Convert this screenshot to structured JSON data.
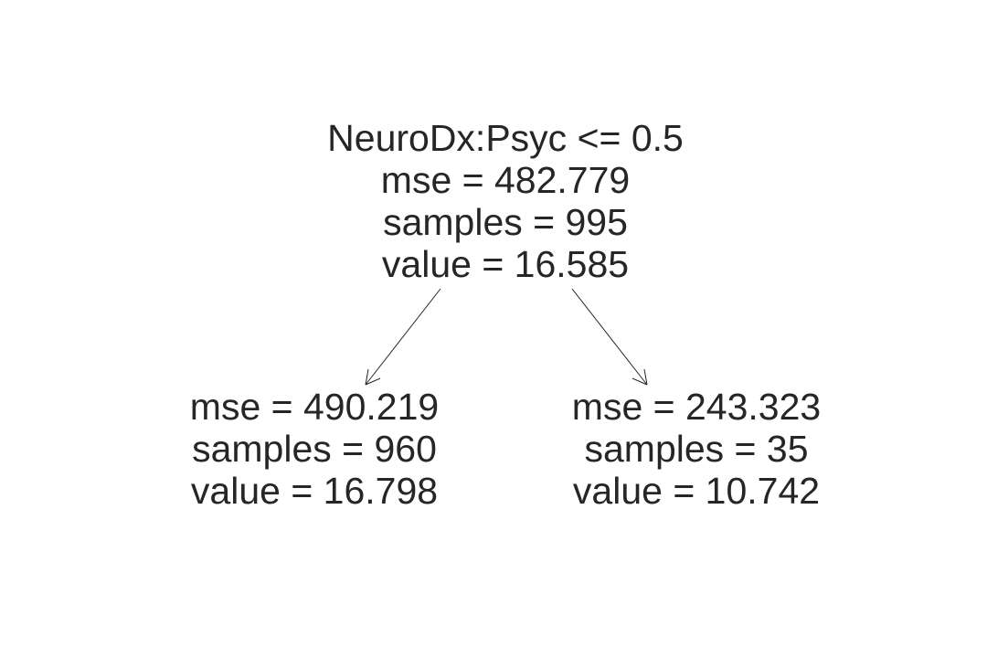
{
  "tree": {
    "root": {
      "condition": "NeuroDx:Psyc <= 0.5",
      "mse": "mse = 482.779",
      "samples": "samples = 995",
      "value": "value = 16.585"
    },
    "left": {
      "mse": "mse = 490.219",
      "samples": "samples = 960",
      "value": "value = 16.798"
    },
    "right": {
      "mse": "mse = 243.323",
      "samples": "samples = 35",
      "value": "value = 10.742"
    },
    "edge_color": "#262626",
    "text_color": "#262626"
  }
}
